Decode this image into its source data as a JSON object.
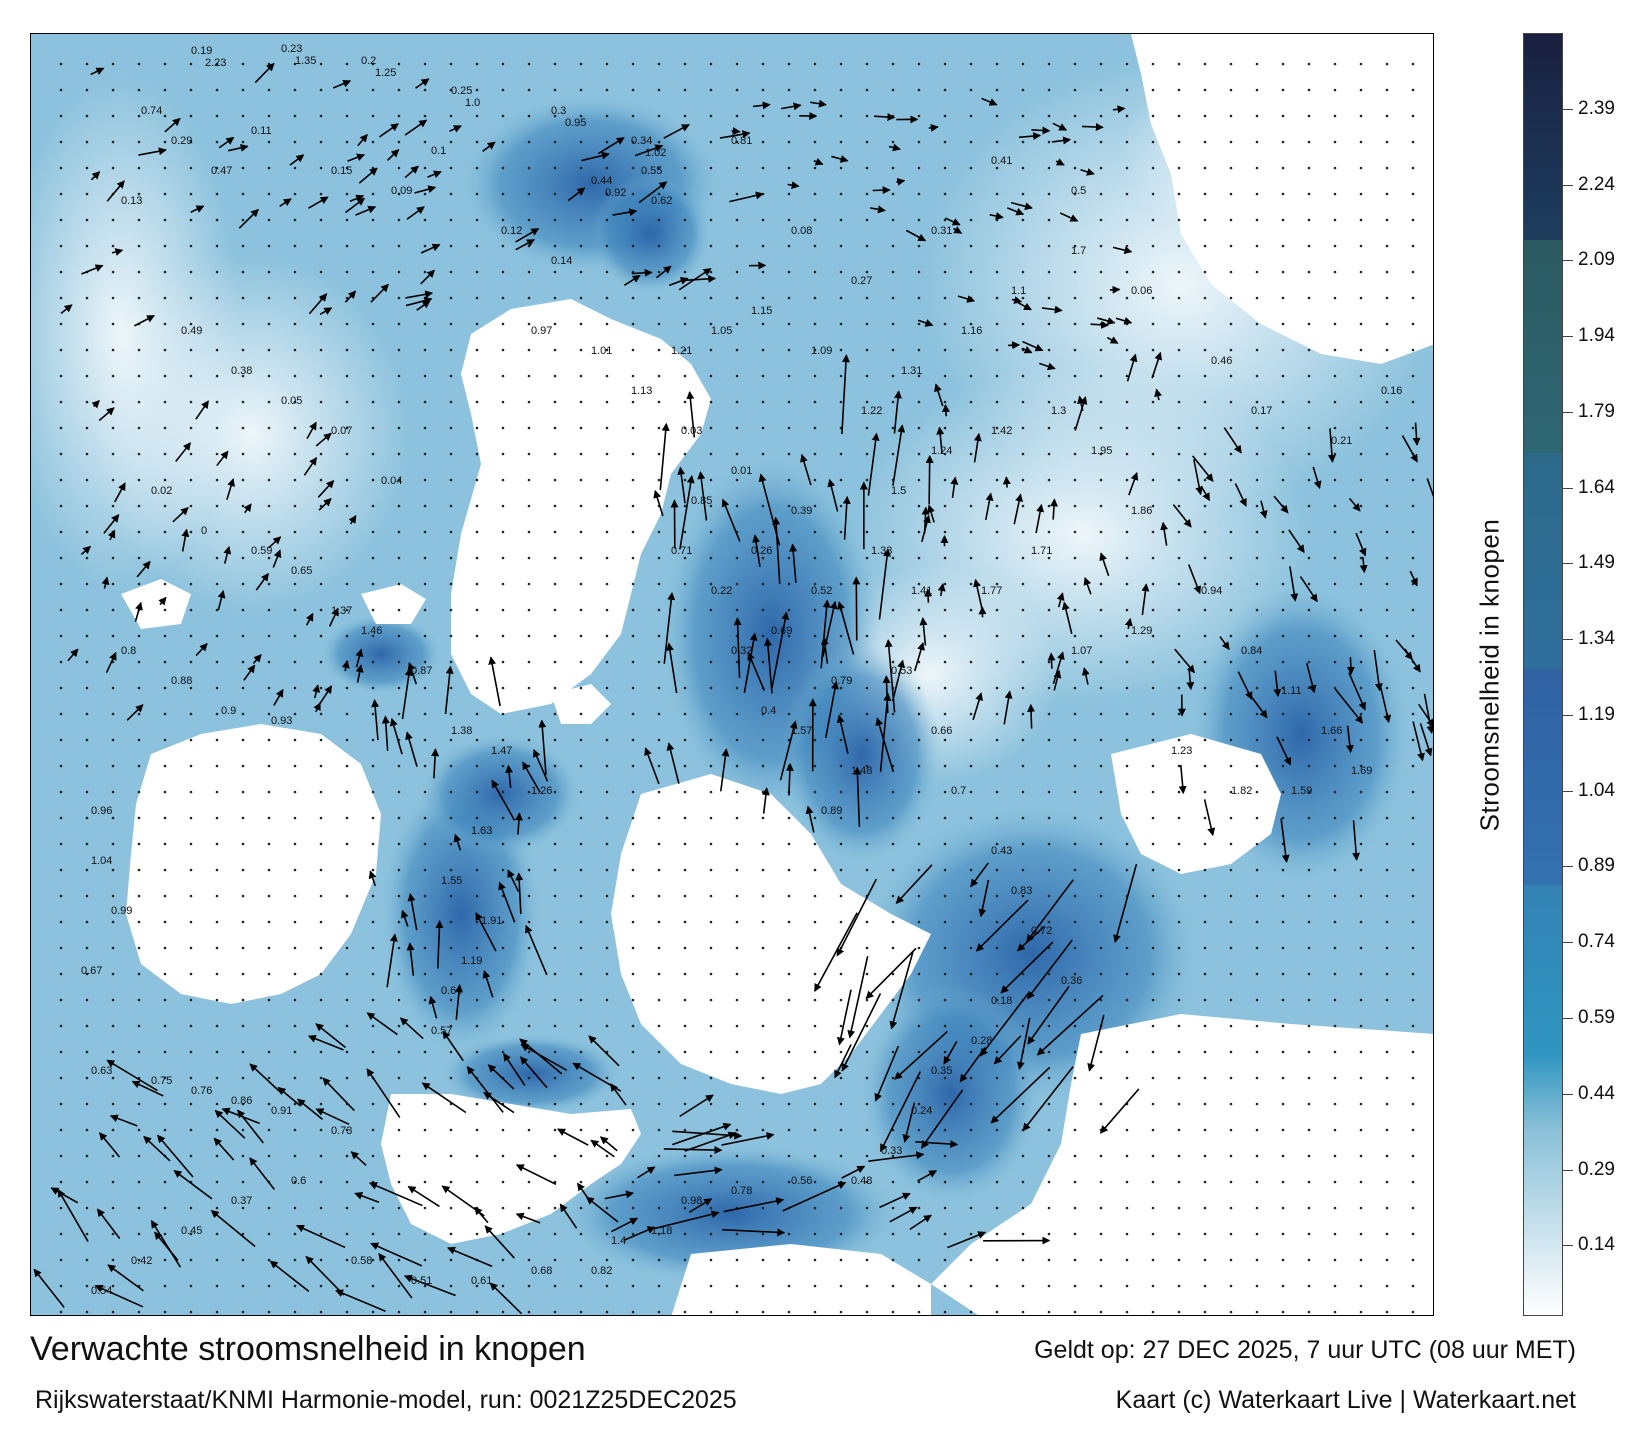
{
  "title": "Verwachte stroomsnelheid in knopen",
  "valid_time": "Geldt op: 27 DEC 2025, 7 uur UTC (08 uur MET)",
  "source": "Rijkswaterstaat/KNMI Harmonie-model, run: 0021Z25DEC2025",
  "credit": "Kaart (c) Waterkaart Live | Waterkaart.net",
  "colorbar": {
    "title": "Stroomsnelheid in knopen",
    "tick_labels": [
      "2.39",
      "2.24",
      "2.09",
      "1.94",
      "1.79",
      "1.64",
      "1.49",
      "1.34",
      "1.19",
      "1.04",
      "0.89",
      "0.74",
      "0.59",
      "0.44",
      "0.29",
      "0.14"
    ],
    "tick_values": [
      2.39,
      2.24,
      2.09,
      1.94,
      1.79,
      1.64,
      1.49,
      1.34,
      1.19,
      1.04,
      0.89,
      0.74,
      0.59,
      0.44,
      0.29,
      0.14
    ],
    "range": [
      0,
      2.54
    ],
    "colors": [
      "#ffffff",
      "#a9cfe0",
      "#2e8fb9",
      "#2f6eaa",
      "#3a64a1",
      "#2d6c8c",
      "#2c5f6b",
      "#1c3a5c",
      "#1a1f3f"
    ]
  },
  "map": {
    "land_color": "#ffffff",
    "water_color": "#8cc2dd",
    "strong_current_color": "#2f6fb0",
    "arrow_color": "#000000",
    "speed_labels": [
      {
        "t": "0.19"
      },
      {
        "t": "0.23"
      },
      {
        "t": "0.2"
      },
      {
        "t": "0.25"
      },
      {
        "t": "0.3"
      },
      {
        "t": "0.34"
      },
      {
        "t": "0.44"
      },
      {
        "t": "0.55"
      },
      {
        "t": "0.62"
      },
      {
        "t": "0.81"
      },
      {
        "t": "0.74"
      },
      {
        "t": "0.29"
      },
      {
        "t": "0.47"
      },
      {
        "t": "0.13"
      },
      {
        "t": "0.11"
      },
      {
        "t": "0.15"
      },
      {
        "t": "0.09"
      },
      {
        "t": "0.1"
      },
      {
        "t": "0.12"
      },
      {
        "t": "0.14"
      },
      {
        "t": "0.08"
      },
      {
        "t": "0.27"
      },
      {
        "t": "0.31"
      },
      {
        "t": "0.41"
      },
      {
        "t": "0.5"
      },
      {
        "t": "0.06"
      },
      {
        "t": "0.46"
      },
      {
        "t": "0.17"
      },
      {
        "t": "0.21"
      },
      {
        "t": "0.16"
      },
      {
        "t": "0.03"
      },
      {
        "t": "0.01"
      },
      {
        "t": "0.39"
      },
      {
        "t": "0.26"
      },
      {
        "t": "0.52"
      },
      {
        "t": "0.69"
      },
      {
        "t": "0.79"
      },
      {
        "t": "1.57"
      },
      {
        "t": "1.48"
      },
      {
        "t": "0.89"
      },
      {
        "t": "1.37"
      },
      {
        "t": "1.46"
      },
      {
        "t": "0.87"
      },
      {
        "t": "1.38"
      },
      {
        "t": "1.47"
      },
      {
        "t": "1.26"
      },
      {
        "t": "1.63"
      },
      {
        "t": "1.55"
      },
      {
        "t": "1.91"
      },
      {
        "t": "1.19"
      },
      {
        "t": "0.64"
      },
      {
        "t": "0.57"
      },
      {
        "t": "0.53"
      },
      {
        "t": "0.66"
      },
      {
        "t": "0.7"
      },
      {
        "t": "0.43"
      },
      {
        "t": "0.83"
      },
      {
        "t": "0.72"
      },
      {
        "t": "0.36"
      },
      {
        "t": "0.18"
      },
      {
        "t": "0.28"
      },
      {
        "t": "0.35"
      },
      {
        "t": "0.24"
      },
      {
        "t": "0.33"
      },
      {
        "t": "0.48"
      },
      {
        "t": "0.56"
      },
      {
        "t": "0.78"
      },
      {
        "t": "0.98"
      },
      {
        "t": "1.18"
      },
      {
        "t": "1.4"
      },
      {
        "t": "0.94"
      },
      {
        "t": "0.84"
      },
      {
        "t": "1.11"
      },
      {
        "t": "1.66"
      },
      {
        "t": "1.69"
      },
      {
        "t": "1.59"
      },
      {
        "t": "1.82"
      },
      {
        "t": "1.23"
      },
      {
        "t": "1.29"
      },
      {
        "t": "1.07"
      },
      {
        "t": "0.96"
      },
      {
        "t": "1.04"
      },
      {
        "t": "0.99"
      },
      {
        "t": "0.67"
      },
      {
        "t": "0.63"
      },
      {
        "t": "0.75"
      },
      {
        "t": "0.76"
      },
      {
        "t": "0.86"
      },
      {
        "t": "0.91"
      },
      {
        "t": "0.73"
      },
      {
        "t": "0.6"
      },
      {
        "t": "0.37"
      },
      {
        "t": "0.45"
      },
      {
        "t": "0.42"
      },
      {
        "t": "0.54"
      },
      {
        "t": "0.58"
      },
      {
        "t": "0.51"
      },
      {
        "t": "0.61"
      },
      {
        "t": "0.68"
      },
      {
        "t": "0.82"
      },
      {
        "t": "1.95"
      },
      {
        "t": "1.86"
      },
      {
        "t": "1.71"
      },
      {
        "t": "1.77"
      },
      {
        "t": "1.41"
      },
      {
        "t": "1.33"
      },
      {
        "t": "1.5"
      },
      {
        "t": "1.24"
      },
      {
        "t": "1.42"
      },
      {
        "t": "1.3"
      },
      {
        "t": "0.85"
      },
      {
        "t": "0.71"
      },
      {
        "t": "0.22"
      },
      {
        "t": "0.32"
      },
      {
        "t": "0.4"
      },
      {
        "t": "0.49"
      },
      {
        "t": "0.38"
      },
      {
        "t": "0.05"
      },
      {
        "t": "0.07"
      },
      {
        "t": "0.04"
      },
      {
        "t": "0.02"
      },
      {
        "t": "0"
      },
      {
        "t": "0.59"
      },
      {
        "t": "0.65"
      },
      {
        "t": "0.8"
      },
      {
        "t": "0.88"
      },
      {
        "t": "0.9"
      },
      {
        "t": "0.93"
      },
      {
        "t": "0.97"
      },
      {
        "t": "1.01"
      },
      {
        "t": "1.13"
      },
      {
        "t": "1.21"
      },
      {
        "t": "1.05"
      },
      {
        "t": "1.15"
      },
      {
        "t": "1.09"
      },
      {
        "t": "1.22"
      },
      {
        "t": "1.31"
      },
      {
        "t": "1.16"
      },
      {
        "t": "1.1"
      },
      {
        "t": "1.7"
      },
      {
        "t": "2.23"
      },
      {
        "t": "1.35"
      },
      {
        "t": "1.25"
      },
      {
        "t": "1.0"
      },
      {
        "t": "0.95"
      },
      {
        "t": "1.02"
      },
      {
        "t": "0.92"
      }
    ]
  }
}
